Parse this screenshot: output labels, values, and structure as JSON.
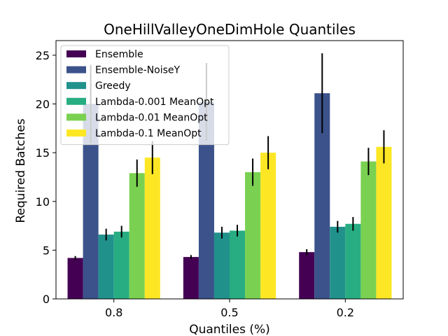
{
  "chart_data": {
    "type": "bar",
    "title": "OneHillValleyOneDimHole Quantiles",
    "xlabel": "Quantiles (%)",
    "ylabel": "Required Batches",
    "categories": [
      "0.8",
      "0.5",
      "0.2"
    ],
    "ylim": [
      0,
      26.5
    ],
    "yticks": [
      0,
      5,
      10,
      15,
      20,
      25
    ],
    "grid": false,
    "legend_position": "top-left",
    "series": [
      {
        "name": "Ensemble",
        "color": "#440154",
        "values": [
          4.2,
          4.3,
          4.8
        ],
        "err": [
          0.2,
          0.2,
          0.3
        ]
      },
      {
        "name": "Ensemble-NoiseY",
        "color": "#3b528b",
        "values": [
          20.0,
          20.2,
          21.1
        ],
        "err": [
          4.0,
          4.0,
          4.1
        ]
      },
      {
        "name": "Greedy",
        "color": "#21918c",
        "values": [
          6.6,
          6.8,
          7.4
        ],
        "err": [
          0.6,
          0.6,
          0.6
        ]
      },
      {
        "name": "Lambda-0.001 MeanOpt",
        "color": "#27ad81",
        "values": [
          6.9,
          7.0,
          7.7
        ],
        "err": [
          0.6,
          0.6,
          0.7
        ]
      },
      {
        "name": "Lambda-0.01 MeanOpt",
        "color": "#7ad151",
        "values": [
          12.9,
          13.0,
          14.1
        ],
        "err": [
          1.4,
          1.4,
          1.4
        ]
      },
      {
        "name": "Lambda-0.1 MeanOpt",
        "color": "#fde725",
        "values": [
          14.5,
          15.0,
          15.6
        ],
        "err": [
          1.7,
          1.7,
          1.7
        ]
      }
    ]
  }
}
